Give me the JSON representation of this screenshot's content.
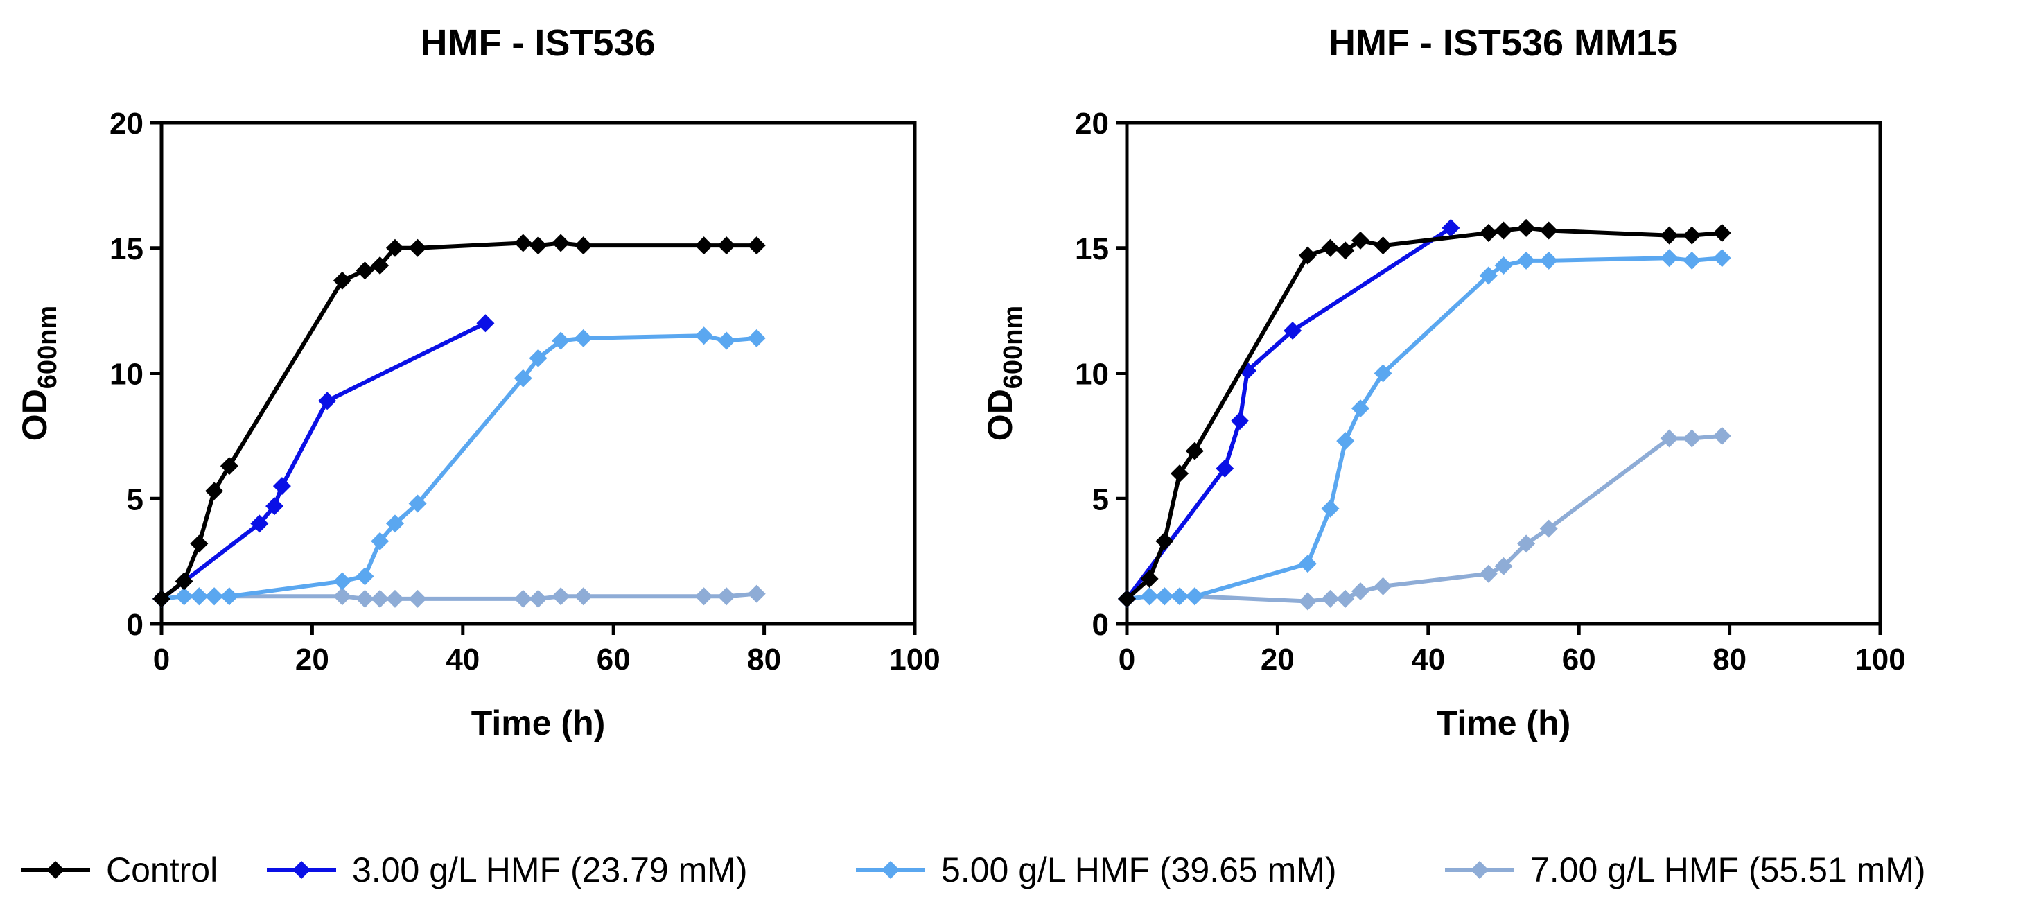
{
  "series_styles": [
    {
      "name": "Control",
      "color": "#000000"
    },
    {
      "name": "3.00 g/L HMF (23.79 mM)",
      "color": "#0a10e6"
    },
    {
      "name": "5.00 g/L HMF (39.65 mM)",
      "color": "#5aa7f0"
    },
    {
      "name": "7.00 g/L HMF (55.51 mM)",
      "color": "#8eacd6"
    }
  ],
  "legend": {
    "items": [
      "Control",
      "3.00 g/L HMF (23.79 mM)",
      "5.00 g/L HMF (39.65 mM)",
      "7.00 g/L HMF (55.51 mM)"
    ]
  },
  "chart_data": [
    {
      "type": "line",
      "title": "HMF - IST536",
      "xlabel": "Time (h)",
      "ylabel_main": "OD",
      "ylabel_sub": "600nm",
      "xlim": [
        0,
        100
      ],
      "ylim": [
        0,
        20
      ],
      "xticks": [
        0,
        20,
        40,
        60,
        80,
        100
      ],
      "yticks": [
        0,
        5,
        10,
        15,
        20
      ],
      "series": [
        {
          "name": "Control",
          "x": [
            0,
            3,
            5,
            7,
            9,
            24,
            27,
            29,
            31,
            34,
            48,
            50,
            53,
            56,
            72,
            75,
            79
          ],
          "y": [
            1.0,
            1.7,
            3.2,
            5.3,
            6.3,
            13.7,
            14.1,
            14.3,
            15.0,
            15.0,
            15.2,
            15.1,
            15.2,
            15.1,
            15.1,
            15.1,
            15.1
          ]
        },
        {
          "name": "3.00 g/L HMF (23.79 mM)",
          "x": [
            0,
            13,
            15,
            16,
            22,
            43
          ],
          "y": [
            1.0,
            4.0,
            4.7,
            5.5,
            8.9,
            12.0
          ]
        },
        {
          "name": "5.00 g/L HMF (39.65 mM)",
          "x": [
            0,
            3,
            5,
            7,
            9,
            24,
            27,
            29,
            31,
            34,
            48,
            50,
            53,
            56,
            72,
            75,
            79
          ],
          "y": [
            1.0,
            1.1,
            1.1,
            1.1,
            1.1,
            1.7,
            1.9,
            3.3,
            4.0,
            4.8,
            9.8,
            10.6,
            11.3,
            11.4,
            11.5,
            11.3,
            11.4
          ]
        },
        {
          "name": "7.00 g/L HMF (55.51 mM)",
          "x": [
            0,
            3,
            5,
            7,
            9,
            24,
            27,
            29,
            31,
            34,
            48,
            50,
            53,
            56,
            72,
            75,
            79
          ],
          "y": [
            1.0,
            1.1,
            1.1,
            1.1,
            1.1,
            1.1,
            1.0,
            1.0,
            1.0,
            1.0,
            1.0,
            1.0,
            1.1,
            1.1,
            1.1,
            1.1,
            1.2
          ]
        }
      ]
    },
    {
      "type": "line",
      "title": "HMF - IST536 MM15",
      "xlabel": "Time (h)",
      "ylabel_main": "OD",
      "ylabel_sub": "600nm",
      "xlim": [
        0,
        100
      ],
      "ylim": [
        0,
        20
      ],
      "xticks": [
        0,
        20,
        40,
        60,
        80,
        100
      ],
      "yticks": [
        0,
        5,
        10,
        15,
        20
      ],
      "series": [
        {
          "name": "Control",
          "x": [
            0,
            3,
            5,
            7,
            9,
            24,
            27,
            29,
            31,
            34,
            48,
            50,
            53,
            56,
            72,
            75,
            79
          ],
          "y": [
            1.0,
            1.8,
            3.3,
            6.0,
            6.9,
            14.7,
            15.0,
            14.9,
            15.3,
            15.1,
            15.6,
            15.7,
            15.8,
            15.7,
            15.5,
            15.5,
            15.6
          ]
        },
        {
          "name": "3.00 g/L HMF (23.79 mM)",
          "x": [
            0,
            13,
            15,
            16,
            22,
            43
          ],
          "y": [
            1.0,
            6.2,
            8.1,
            10.1,
            11.7,
            15.8
          ]
        },
        {
          "name": "5.00 g/L HMF (39.65 mM)",
          "x": [
            0,
            3,
            5,
            7,
            9,
            24,
            27,
            29,
            31,
            34,
            48,
            50,
            53,
            56,
            72,
            75,
            79
          ],
          "y": [
            1.0,
            1.1,
            1.1,
            1.1,
            1.1,
            2.4,
            4.6,
            7.3,
            8.6,
            10.0,
            13.9,
            14.3,
            14.5,
            14.5,
            14.6,
            14.5,
            14.6
          ]
        },
        {
          "name": "7.00 g/L HMF (55.51 mM)",
          "x": [
            0,
            3,
            5,
            7,
            9,
            24,
            27,
            29,
            31,
            34,
            48,
            50,
            53,
            56,
            72,
            75,
            79
          ],
          "y": [
            1.0,
            1.1,
            1.1,
            1.1,
            1.1,
            0.9,
            1.0,
            1.0,
            1.3,
            1.5,
            2.0,
            2.3,
            3.2,
            3.8,
            7.4,
            7.4,
            7.5
          ]
        }
      ]
    }
  ]
}
